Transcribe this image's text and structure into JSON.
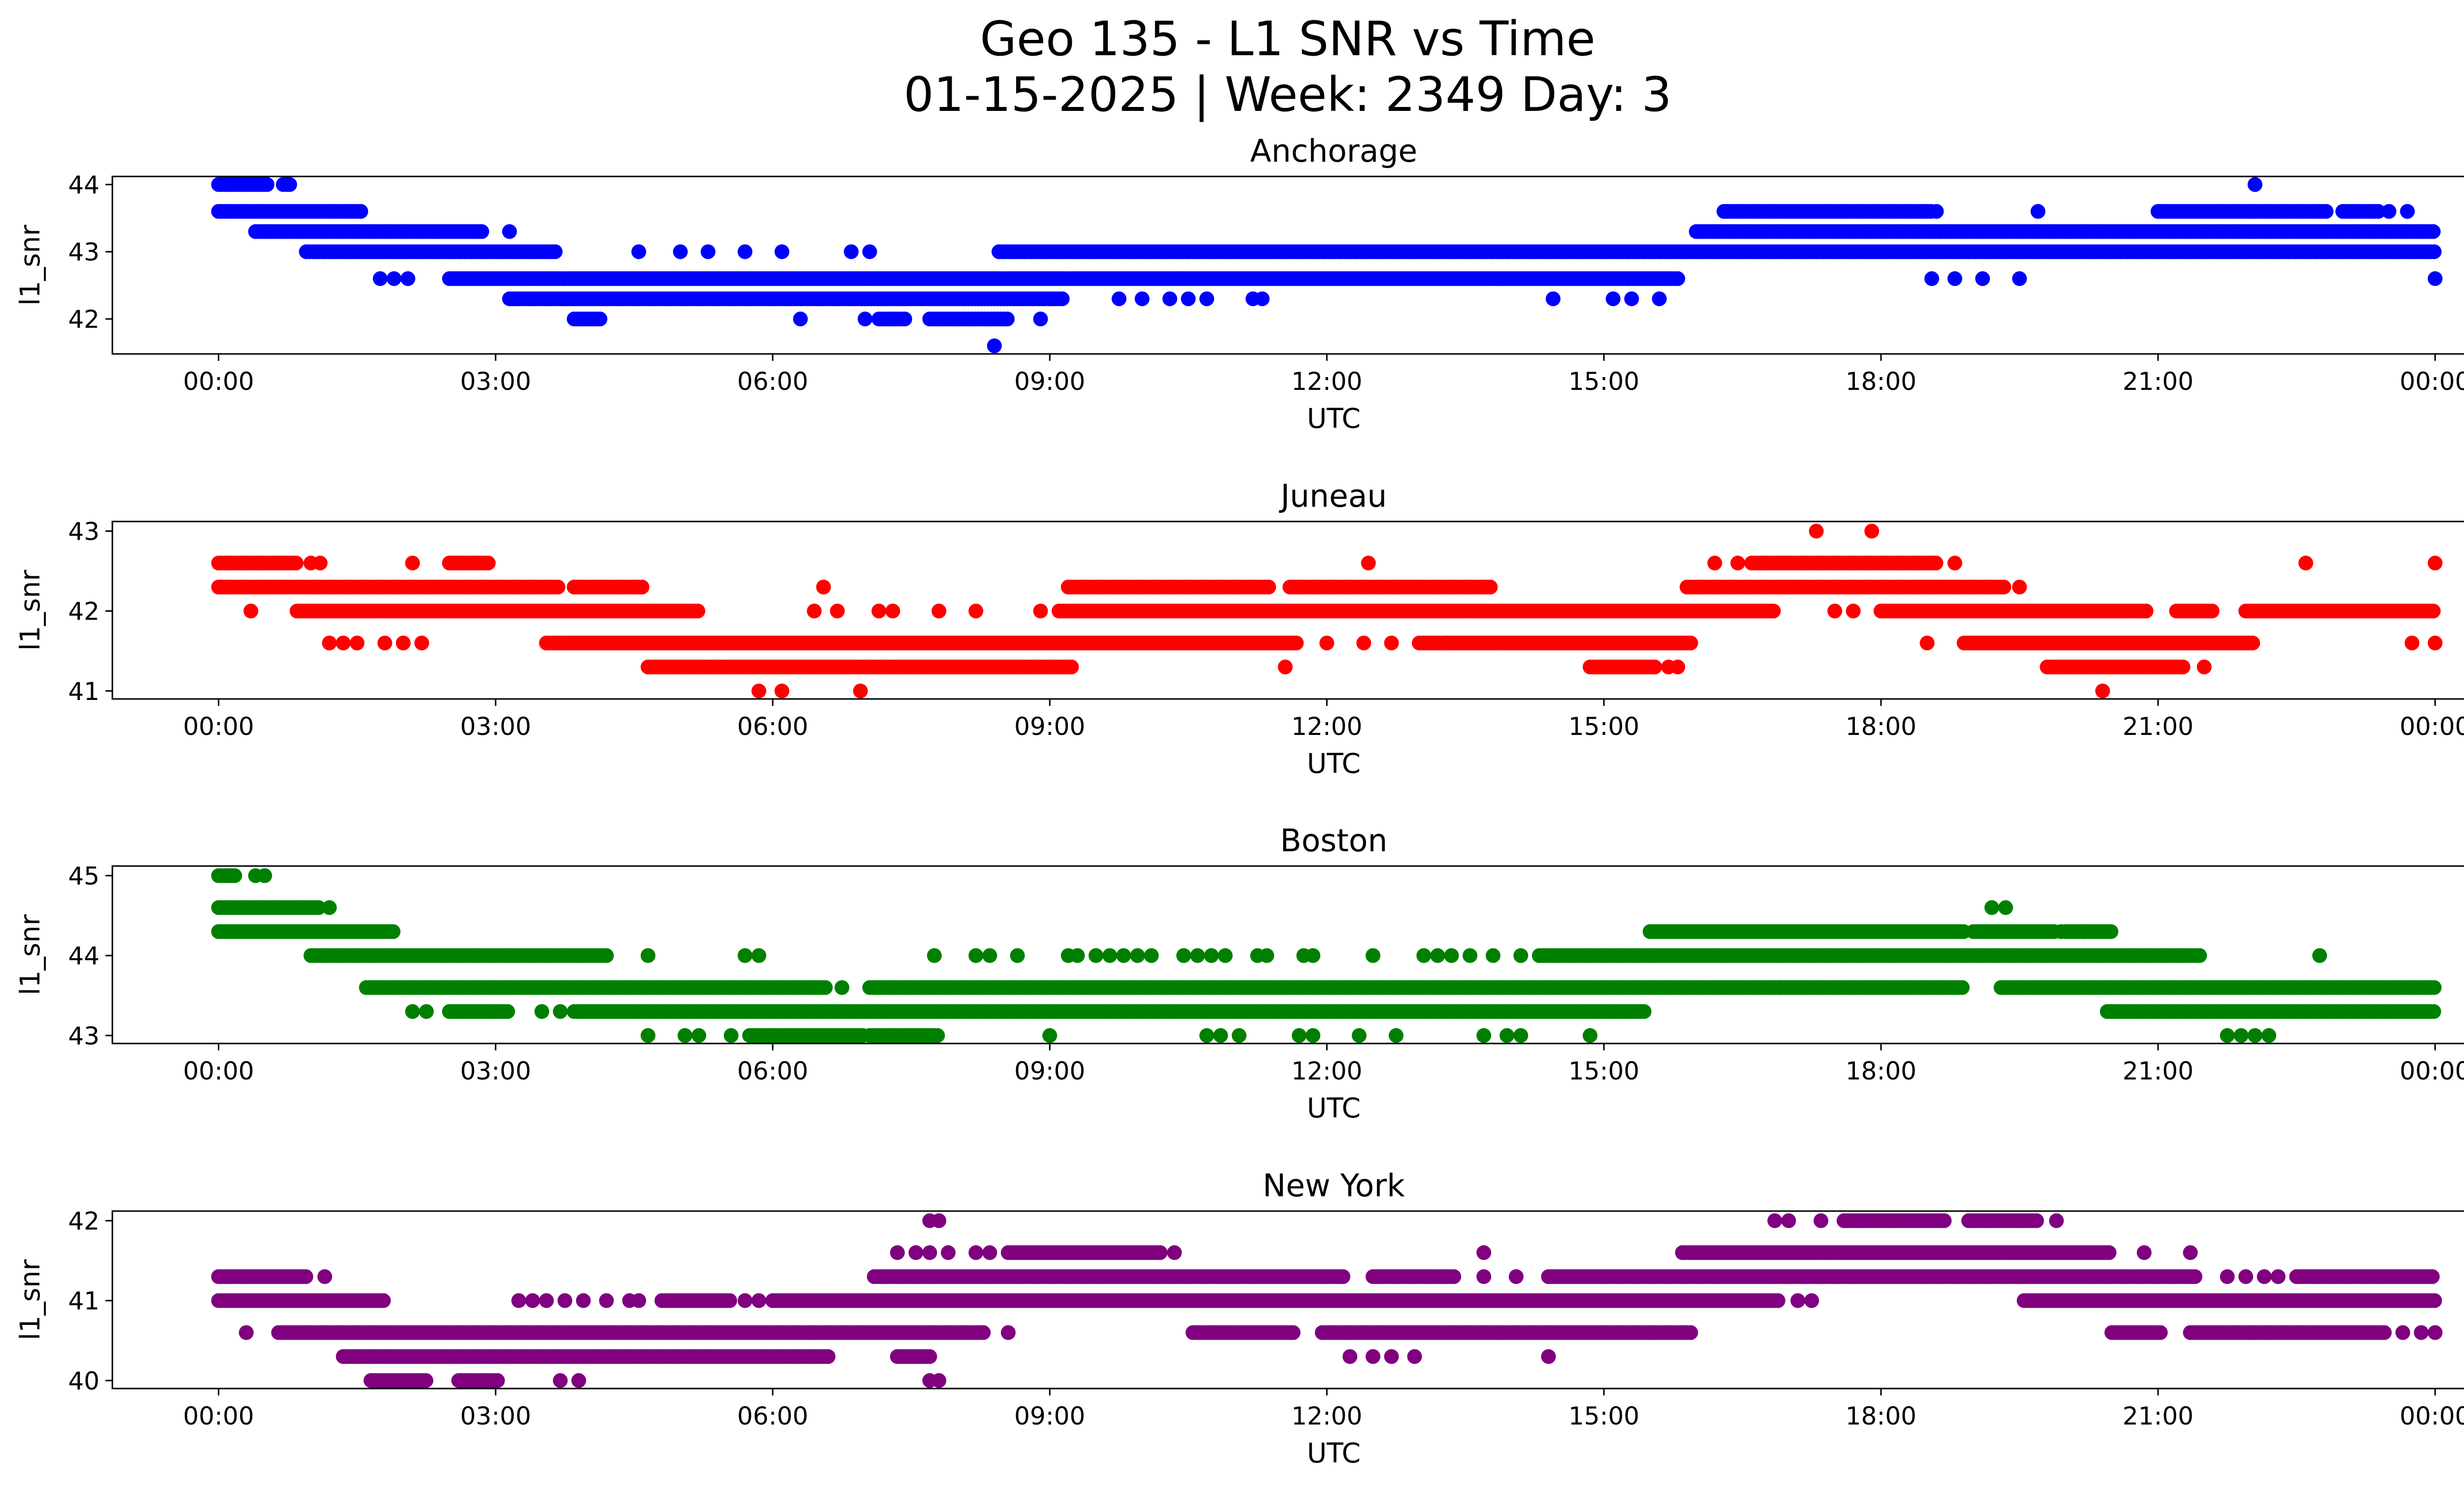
{
  "figure": {
    "title_line1": "Geo 135 - L1 SNR vs Time",
    "title_line2": "01-15-2025 | Week: 2349 Day: 3"
  },
  "chart_data": [
    {
      "type": "scatter",
      "title": "Anchorage",
      "xlabel": "UTC",
      "ylabel": "l1_snr",
      "color": "#0000ff",
      "x_unit": "hours UTC (0 = 00:00 of 01-15-2025, 24 = 00:00 of next day)",
      "xlim": [
        -1.15,
        25.3
      ],
      "ylim": [
        41.48,
        44.12
      ],
      "xticks": [
        "00:00",
        "03:00",
        "06:00",
        "09:00",
        "12:00",
        "15:00",
        "18:00",
        "21:00",
        "00:00"
      ],
      "yticks": [
        42,
        43,
        44
      ],
      "bands": [
        {
          "y": 44.0,
          "ranges": [
            [
              0.0,
              0.55
            ],
            [
              0.7,
              0.8
            ]
          ],
          "points": [
            22.05
          ]
        },
        {
          "y": 43.6,
          "ranges": [
            [
              0.0,
              1.55
            ],
            [
              16.3,
              18.55
            ],
            [
              21.0,
              22.85
            ],
            [
              23.0,
              23.4
            ]
          ],
          "points": [
            18.6,
            19.7,
            23.5,
            23.7
          ]
        },
        {
          "y": 43.3,
          "ranges": [
            [
              0.4,
              2.85
            ],
            [
              16.0,
              24.0
            ]
          ],
          "points": [
            3.15
          ]
        },
        {
          "y": 43.0,
          "ranges": [
            [
              0.95,
              3.65
            ],
            [
              8.45,
              24.0
            ]
          ],
          "points": [
            4.55,
            5.0,
            5.3,
            5.7,
            6.1,
            6.85,
            7.05
          ]
        },
        {
          "y": 42.6,
          "ranges": [
            [
              2.5,
              15.8
            ]
          ],
          "points": [
            1.75,
            1.9,
            2.05,
            18.55,
            18.8,
            19.1,
            19.5,
            24.0
          ]
        },
        {
          "y": 42.3,
          "ranges": [
            [
              3.15,
              9.15
            ]
          ],
          "points": [
            9.75,
            10.0,
            10.3,
            10.5,
            10.7,
            11.2,
            11.3,
            14.45,
            15.1,
            15.3,
            15.6
          ]
        },
        {
          "y": 42.0,
          "ranges": [
            [
              3.85,
              4.15
            ],
            [
              7.15,
              7.45
            ],
            [
              7.7,
              8.55
            ]
          ],
          "points": [
            6.3,
            7.0,
            8.9
          ]
        },
        {
          "y": 41.6,
          "ranges": [],
          "points": [
            8.4
          ]
        }
      ]
    },
    {
      "type": "scatter",
      "title": "Juneau",
      "xlabel": "UTC",
      "ylabel": "l1_snr",
      "color": "#ff0000",
      "x_unit": "hours UTC (0 = 00:00 of 01-15-2025, 24 = 00:00 of next day)",
      "xlim": [
        -1.15,
        25.3
      ],
      "ylim": [
        40.9,
        43.12
      ],
      "xticks": [
        "00:00",
        "03:00",
        "06:00",
        "09:00",
        "12:00",
        "15:00",
        "18:00",
        "21:00",
        "00:00"
      ],
      "yticks": [
        41,
        42,
        43
      ],
      "bands": [
        {
          "y": 43.0,
          "ranges": [],
          "points": [
            17.3,
            17.9
          ]
        },
        {
          "y": 42.6,
          "ranges": [
            [
              0.0,
              0.85
            ],
            [
              2.5,
              2.95
            ],
            [
              16.6,
              18.6
            ]
          ],
          "points": [
            1.0,
            1.1,
            2.1,
            12.45,
            16.2,
            16.45,
            18.8,
            22.6,
            24.0
          ]
        },
        {
          "y": 42.3,
          "ranges": [
            [
              0.0,
              3.7
            ],
            [
              3.85,
              4.6
            ],
            [
              9.2,
              11.4
            ],
            [
              11.6,
              13.8
            ],
            [
              15.9,
              19.35
            ]
          ],
          "points": [
            6.55,
            19.5
          ]
        },
        {
          "y": 42.0,
          "ranges": [
            [
              0.85,
              5.2
            ],
            [
              9.1,
              16.85
            ],
            [
              18.0,
              20.9
            ],
            [
              21.2,
              21.6
            ],
            [
              21.95,
              24.0
            ]
          ],
          "points": [
            0.35,
            6.45,
            6.7,
            7.15,
            7.3,
            7.8,
            8.2,
            8.9,
            17.5,
            17.7
          ]
        },
        {
          "y": 41.6,
          "ranges": [
            [
              3.55,
              11.7
            ],
            [
              13.0,
              15.95
            ],
            [
              18.9,
              21.5
            ],
            [
              21.5,
              22.05
            ]
          ],
          "points": [
            1.2,
            1.35,
            1.5,
            1.8,
            2.0,
            2.2,
            12.0,
            12.4,
            12.7,
            13.3,
            18.5,
            23.75,
            24.0
          ]
        },
        {
          "y": 41.3,
          "ranges": [
            [
              4.65,
              9.25
            ],
            [
              14.85,
              15.55
            ],
            [
              19.8,
              21.3
            ]
          ],
          "points": [
            11.55,
            15.7,
            15.8,
            21.5
          ]
        },
        {
          "y": 41.0,
          "ranges": [],
          "points": [
            5.85,
            6.1,
            6.95,
            20.4
          ]
        }
      ]
    },
    {
      "type": "scatter",
      "title": "Boston",
      "xlabel": "UTC",
      "ylabel": "l1_snr",
      "color": "#008000",
      "x_unit": "hours UTC (0 = 00:00 of 01-15-2025, 24 = 00:00 of next day)",
      "xlim": [
        -1.15,
        25.3
      ],
      "ylim": [
        42.9,
        45.12
      ],
      "xticks": [
        "00:00",
        "03:00",
        "06:00",
        "09:00",
        "12:00",
        "15:00",
        "18:00",
        "21:00",
        "00:00"
      ],
      "yticks": [
        43,
        44,
        45
      ],
      "bands": [
        {
          "y": 45.0,
          "ranges": [
            [
              0.0,
              0.2
            ]
          ],
          "points": [
            0.4,
            0.5
          ]
        },
        {
          "y": 44.6,
          "ranges": [
            [
              0.0,
              1.1
            ]
          ],
          "points": [
            1.2,
            19.2,
            19.35
          ]
        },
        {
          "y": 44.3,
          "ranges": [
            [
              0.0,
              1.9
            ],
            [
              15.5,
              18.9
            ],
            [
              19.0,
              19.9
            ],
            [
              20.0,
              20.5
            ]
          ],
          "points": [
            19.95,
            20.2
          ]
        },
        {
          "y": 44.0,
          "ranges": [
            [
              1.0,
              3.15
            ],
            [
              3.15,
              4.2
            ],
            [
              14.3,
              16.2
            ],
            [
              16.2,
              21.45
            ]
          ],
          "points": [
            4.65,
            5.7,
            5.85,
            7.75,
            8.2,
            8.35,
            8.65,
            9.2,
            9.3,
            9.5,
            9.65,
            9.8,
            9.95,
            10.1,
            10.45,
            10.6,
            10.75,
            10.9,
            11.25,
            11.35,
            11.75,
            11.85,
            12.5,
            13.05,
            13.2,
            13.35,
            13.55,
            13.8,
            14.1,
            22.75
          ]
        },
        {
          "y": 43.6,
          "ranges": [
            [
              1.6,
              6.6
            ],
            [
              7.05,
              18.9
            ],
            [
              19.3,
              24.0
            ]
          ],
          "points": [
            6.75,
            16.9,
            17.1
          ]
        },
        {
          "y": 43.3,
          "ranges": [
            [
              2.5,
              3.15
            ],
            [
              3.85,
              15.45
            ],
            [
              20.45,
              24.0
            ]
          ],
          "points": [
            2.1,
            2.25,
            3.5,
            3.7
          ]
        },
        {
          "y": 43.0,
          "ranges": [
            [
              5.75,
              7.0
            ],
            [
              7.05,
              7.8
            ]
          ],
          "points": [
            4.65,
            5.05,
            5.2,
            5.55,
            9.0,
            10.7,
            10.85,
            11.05,
            11.7,
            11.85,
            12.35,
            12.75,
            13.7,
            13.95,
            14.1,
            14.85,
            21.75,
            21.9,
            22.05,
            22.2
          ]
        }
      ]
    },
    {
      "type": "scatter",
      "title": "New York",
      "xlabel": "UTC",
      "ylabel": "l1_snr",
      "color": "#800080",
      "x_unit": "hours UTC (0 = 00:00 of 01-15-2025, 24 = 00:00 of next day)",
      "xlim": [
        -1.15,
        25.3
      ],
      "ylim": [
        39.9,
        42.12
      ],
      "xticks": [
        "00:00",
        "03:00",
        "06:00",
        "09:00",
        "12:00",
        "15:00",
        "18:00",
        "21:00",
        "00:00"
      ],
      "yticks": [
        40,
        41,
        42
      ],
      "bands": [
        {
          "y": 42.0,
          "ranges": [
            [
              17.6,
              18.7
            ],
            [
              18.95,
              19.7
            ]
          ],
          "points": [
            7.7,
            7.8,
            16.85,
            17.0,
            17.35,
            19.9
          ]
        },
        {
          "y": 41.6,
          "ranges": [
            [
              15.85,
              20.5
            ],
            [
              8.55,
              10.2
            ]
          ],
          "points": [
            7.35,
            7.55,
            7.7,
            7.9,
            8.2,
            8.35,
            10.35,
            13.7,
            20.85,
            21.35
          ]
        },
        {
          "y": 41.3,
          "ranges": [
            [
              0.0,
              0.95
            ],
            [
              7.1,
              10.95
            ],
            [
              10.95,
              12.2
            ],
            [
              12.5,
              13.4
            ],
            [
              14.4,
              21.4
            ],
            [
              22.5,
              24.0
            ]
          ],
          "points": [
            1.15,
            13.7,
            14.05,
            21.75,
            21.95,
            22.15,
            22.3
          ]
        },
        {
          "y": 41.0,
          "ranges": [
            [
              0.0,
              1.8
            ],
            [
              4.8,
              5.55
            ],
            [
              6.0,
              16.9
            ],
            [
              19.55,
              24.0
            ]
          ],
          "points": [
            3.25,
            3.4,
            3.55,
            3.75,
            3.95,
            4.2,
            4.45,
            4.55,
            5.7,
            5.85,
            17.1,
            17.25
          ]
        },
        {
          "y": 40.6,
          "ranges": [
            [
              0.65,
              8.3
            ],
            [
              10.55,
              11.65
            ],
            [
              11.95,
              15.95
            ],
            [
              20.5,
              21.05
            ],
            [
              21.35,
              23.45
            ]
          ],
          "points": [
            0.3,
            8.55,
            23.65,
            23.85,
            24.0
          ]
        },
        {
          "y": 40.3,
          "ranges": [
            [
              1.35,
              6.6
            ],
            [
              7.35,
              7.7
            ]
          ],
          "points": [
            12.25,
            12.5,
            12.7,
            12.95,
            14.4
          ]
        },
        {
          "y": 40.0,
          "ranges": [
            [
              1.65,
              2.25
            ],
            [
              2.6,
              3.05
            ]
          ],
          "points": [
            3.7,
            3.9,
            7.7,
            7.8
          ]
        }
      ]
    }
  ]
}
